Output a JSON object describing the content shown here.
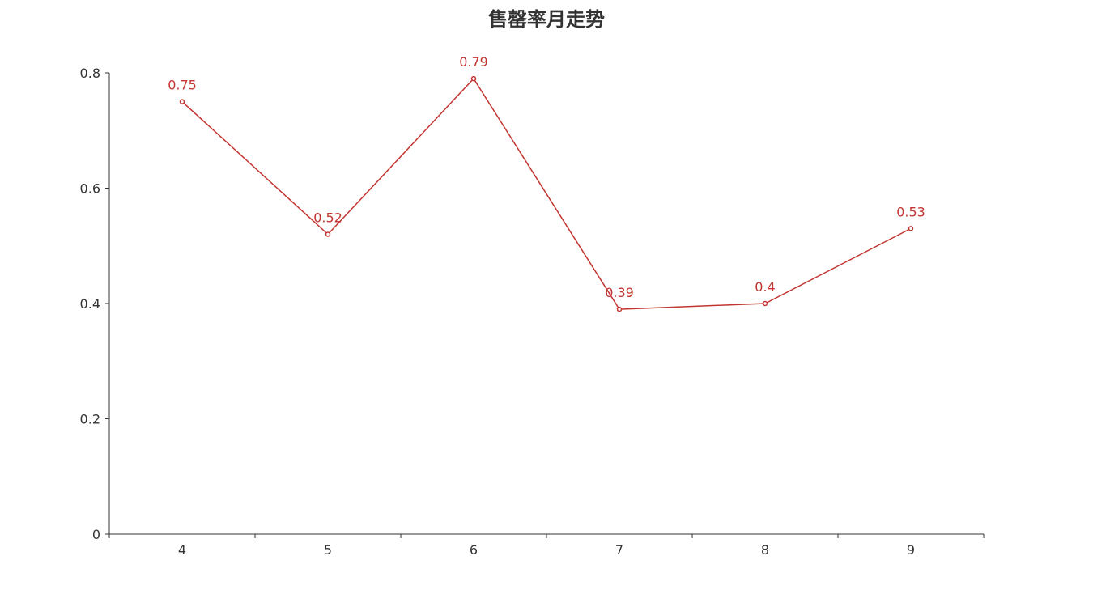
{
  "chart_data": {
    "type": "line",
    "title": "售罄率月走势",
    "xlabel": "",
    "ylabel": "",
    "categories": [
      "4",
      "5",
      "6",
      "7",
      "8",
      "9"
    ],
    "series": [
      {
        "values": [
          0.75,
          0.52,
          0.79,
          0.39,
          0.4,
          0.53
        ],
        "color": "#c23531",
        "data_labels": [
          "0.75",
          "0.52",
          "0.79",
          "0.39",
          "0.4",
          "0.53"
        ]
      }
    ],
    "ylim": [
      0,
      0.8
    ],
    "yticks": [
      0,
      0.2,
      0.4,
      0.6,
      0.8
    ],
    "ytick_labels": [
      "0",
      "0.2",
      "0.4",
      "0.6",
      "0.8"
    ],
    "grid": false,
    "legend": "none",
    "markers": "hollow-circle"
  }
}
